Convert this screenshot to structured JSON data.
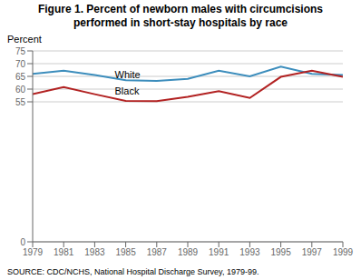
{
  "chart_data": {
    "type": "line",
    "title": "Figure 1. Percent of newborn males with circumcisions",
    "subtitle": "performed in short-stay hospitals by race",
    "y_label": "Percent",
    "source": "SOURCE: CDC/NCHS, National Hospital Discharge Survey, 1979-99.",
    "x": [
      1979,
      1981,
      1983,
      1985,
      1987,
      1989,
      1991,
      1993,
      1995,
      1997,
      1999
    ],
    "series": [
      {
        "name": "White",
        "color": "#3c8dbc",
        "values": [
          66.0,
          67.2,
          65.5,
          63.5,
          63.2,
          64.0,
          67.2,
          65.0,
          68.8,
          66.0,
          65.5
        ]
      },
      {
        "name": "Black",
        "color": "#b22222",
        "values": [
          58.0,
          60.8,
          58.0,
          55.4,
          55.3,
          57.0,
          59.2,
          56.5,
          64.8,
          67.2,
          64.8
        ]
      }
    ],
    "annotations": [
      {
        "text": "White",
        "x": 1984,
        "y": 65.8
      },
      {
        "text": "Black",
        "x": 1984,
        "y": 59.2
      }
    ],
    "xlim": [
      1979,
      1999
    ],
    "xticks": [
      1979,
      1981,
      1983,
      1985,
      1987,
      1989,
      1991,
      1993,
      1995,
      1997,
      1999
    ],
    "ylim": [
      0,
      75
    ],
    "yticks": [
      0,
      55,
      60,
      65,
      70,
      75
    ],
    "grid": true
  }
}
